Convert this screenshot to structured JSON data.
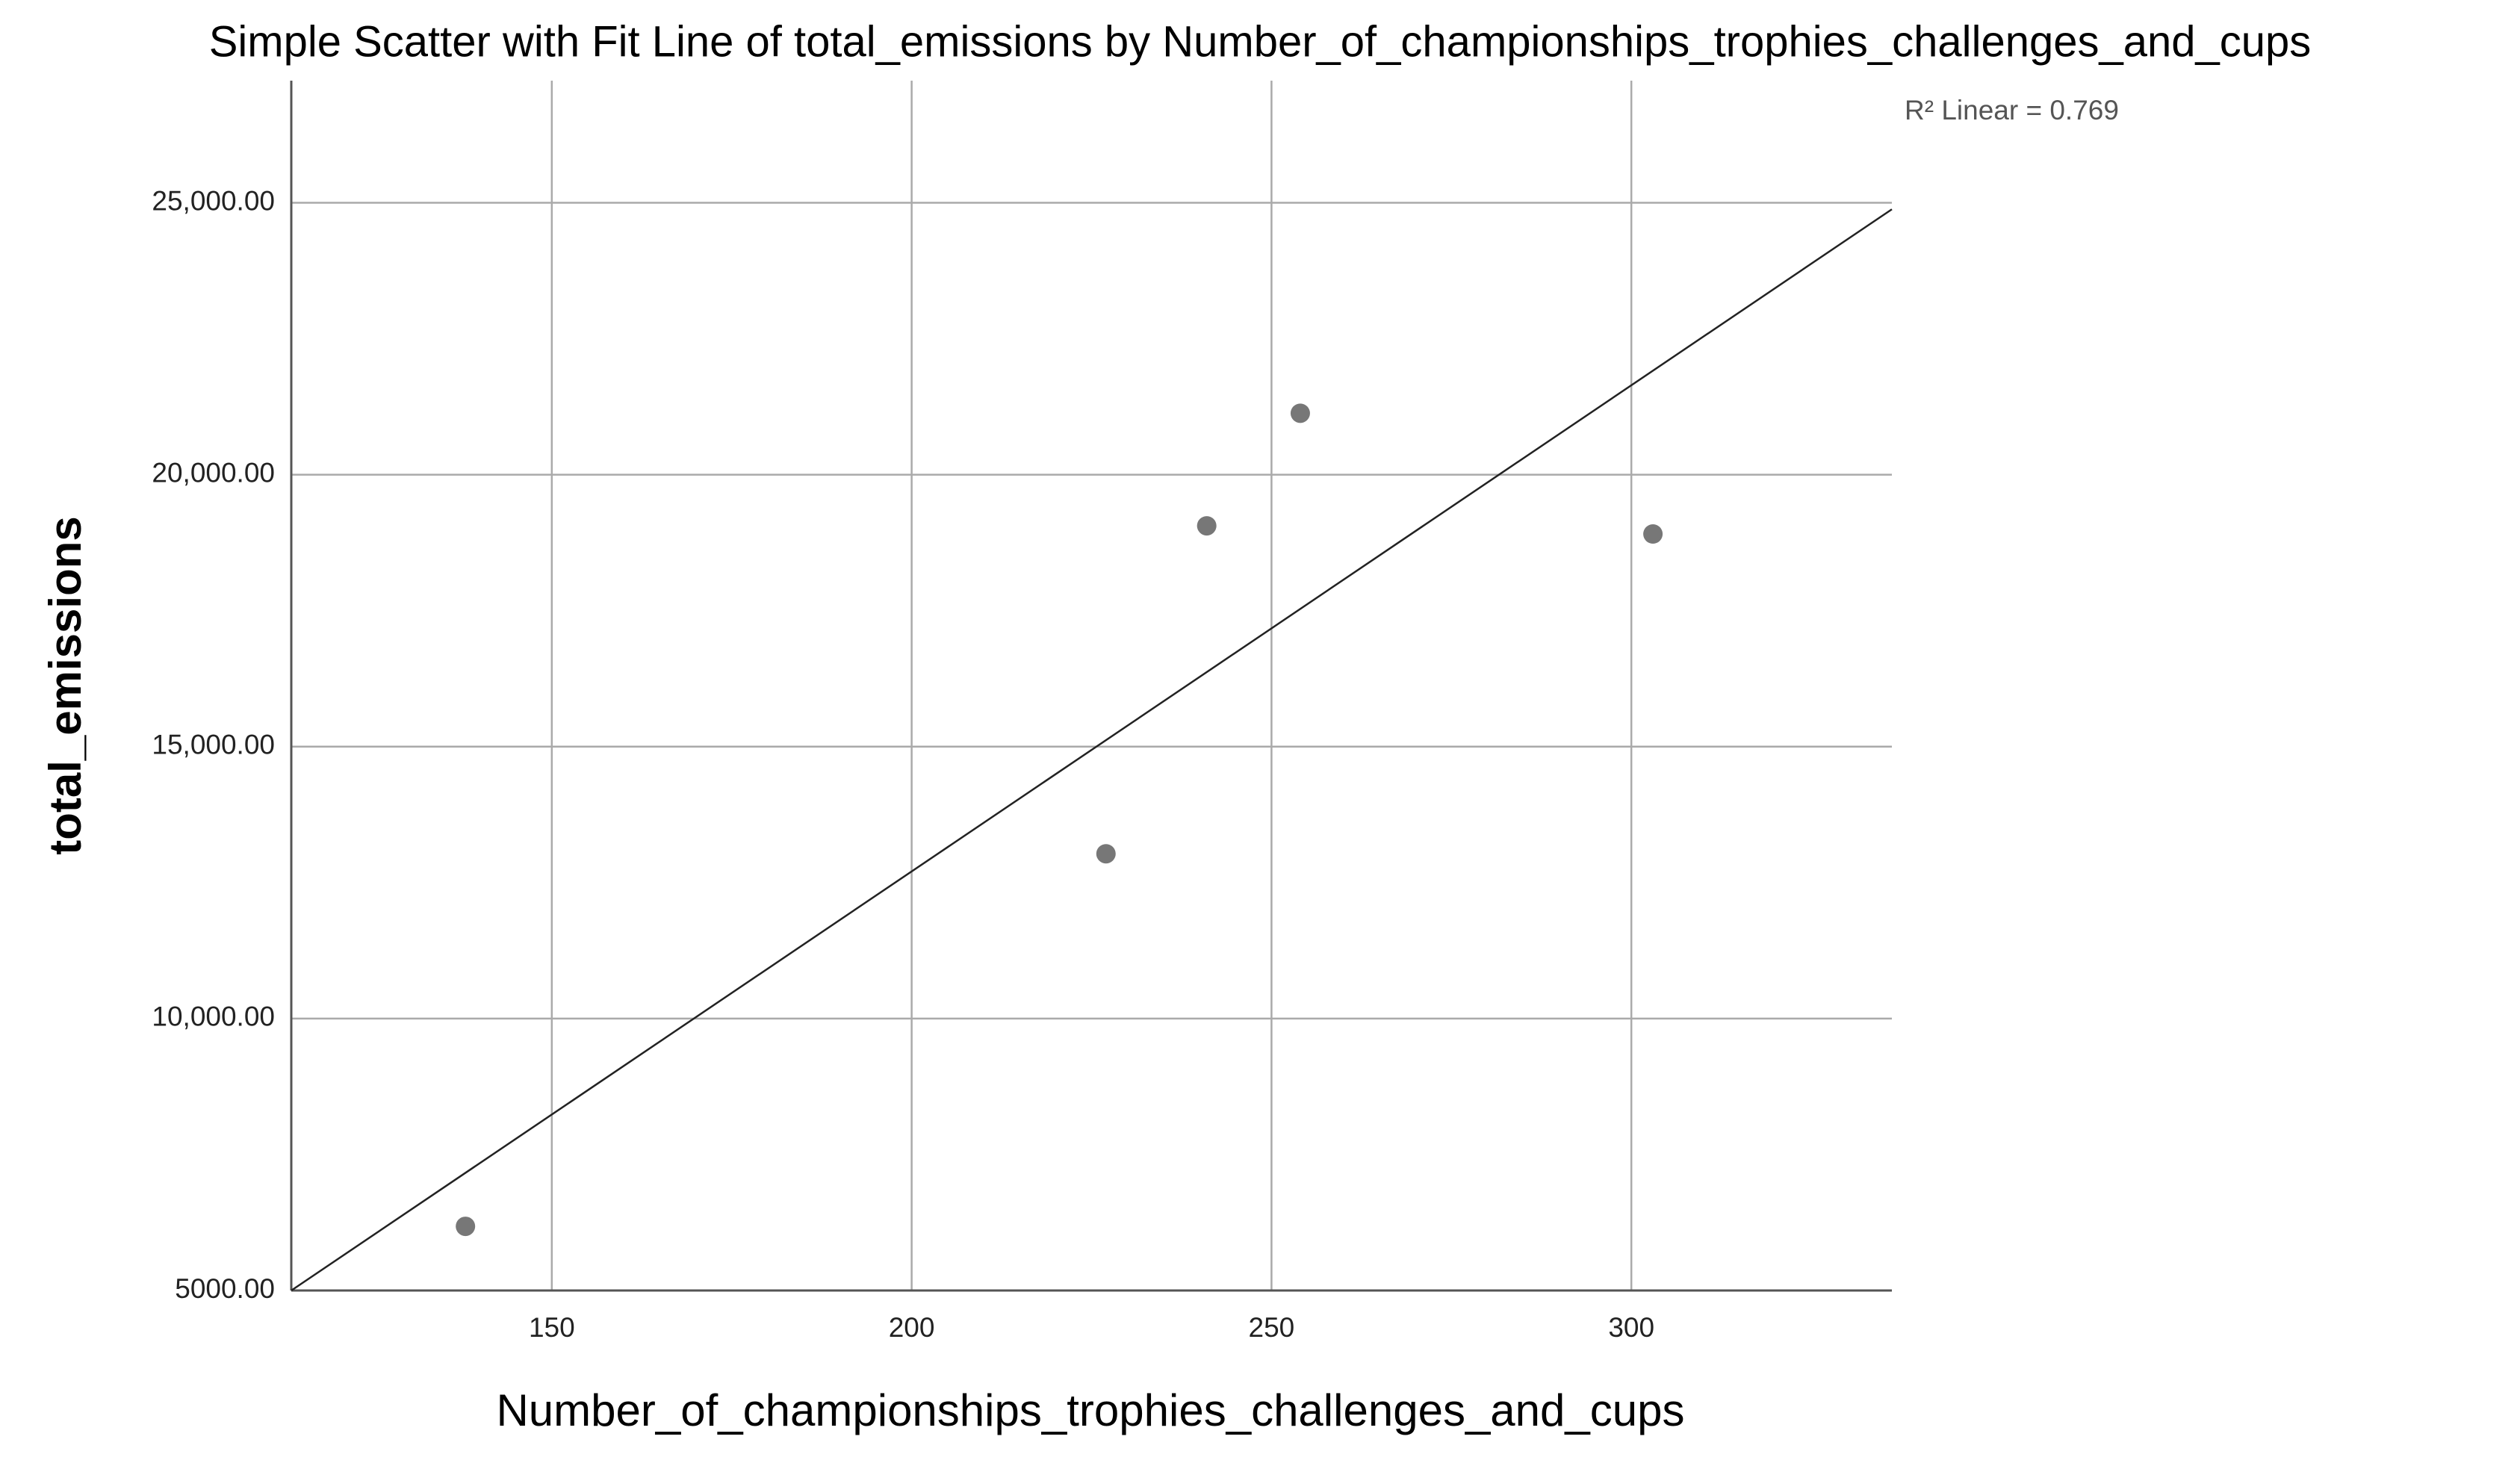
{
  "chart_data": {
    "type": "scatter",
    "title": "Simple Scatter with Fit Line of total_emissions by Number_of_championships_trophies_challenges_and_cups",
    "x_label": "Number_of_championships_trophies_challenges_and_cups",
    "y_label": "total_emissions",
    "annotation": "R² Linear = 0.769",
    "series": [
      {
        "name": "total_emissions",
        "color": "#777777",
        "x": [
          138,
          227,
          241,
          254,
          303
        ],
        "values": [
          6180,
          13030,
          19060,
          21130,
          18910
        ]
      }
    ],
    "fit_line": {
      "x": [
        113.8,
        336.2
      ],
      "values": [
        5000,
        24880
      ],
      "color": "#222222"
    },
    "xlim": [
      113.8,
      336.2
    ],
    "xticks": [
      150,
      200,
      250,
      300
    ],
    "ylim": [
      5000,
      27245
    ],
    "yticks": [
      {
        "value": 5000,
        "label": "5000.00"
      },
      {
        "value": 10000,
        "label": "10,000.00"
      },
      {
        "value": 15000,
        "label": "15,000.00"
      },
      {
        "value": 20000,
        "label": "20,000.00"
      },
      {
        "value": 25000,
        "label": "25,000.00"
      }
    ],
    "grid": true
  }
}
